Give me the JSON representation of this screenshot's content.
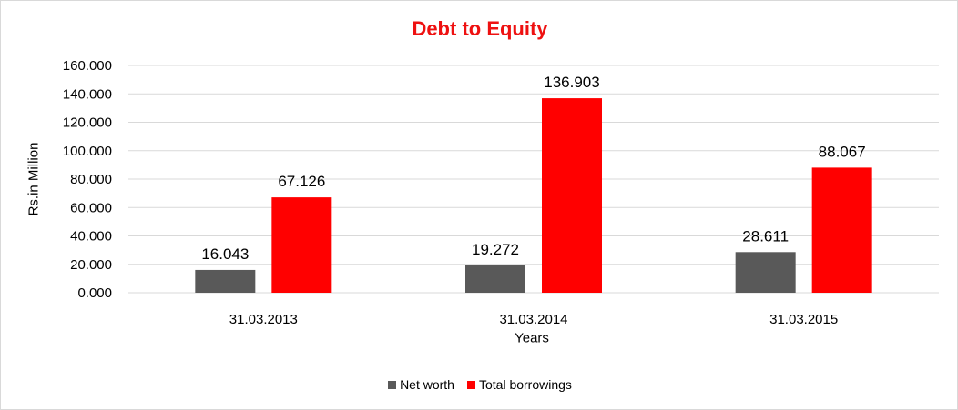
{
  "chart_data": {
    "type": "bar",
    "title": "Debt to Equity",
    "xlabel": "Years",
    "ylabel": "Rs.in Million",
    "categories": [
      "31.03.2013",
      "31.03.2014",
      "31.03.2015"
    ],
    "series": [
      {
        "name": "Net worth",
        "values": [
          16.043,
          19.272,
          28.611
        ],
        "value_labels": [
          "16.043",
          "19.272",
          "28.611"
        ],
        "color": "#595959"
      },
      {
        "name": "Total borrowings",
        "values": [
          67.126,
          136.903,
          88.067
        ],
        "value_labels": [
          "67.126",
          "136.903",
          "88.067"
        ],
        "color": "#ff0000"
      }
    ],
    "ylim": [
      0,
      160
    ],
    "yticks": [
      "0.000",
      "20.000",
      "40.000",
      "60.000",
      "80.000",
      "100.000",
      "120.000",
      "140.000",
      "160.000"
    ],
    "grid": true,
    "legend_position": "bottom"
  },
  "colors": {
    "title": "#ee1111",
    "gridline": "#d9d9d9"
  }
}
